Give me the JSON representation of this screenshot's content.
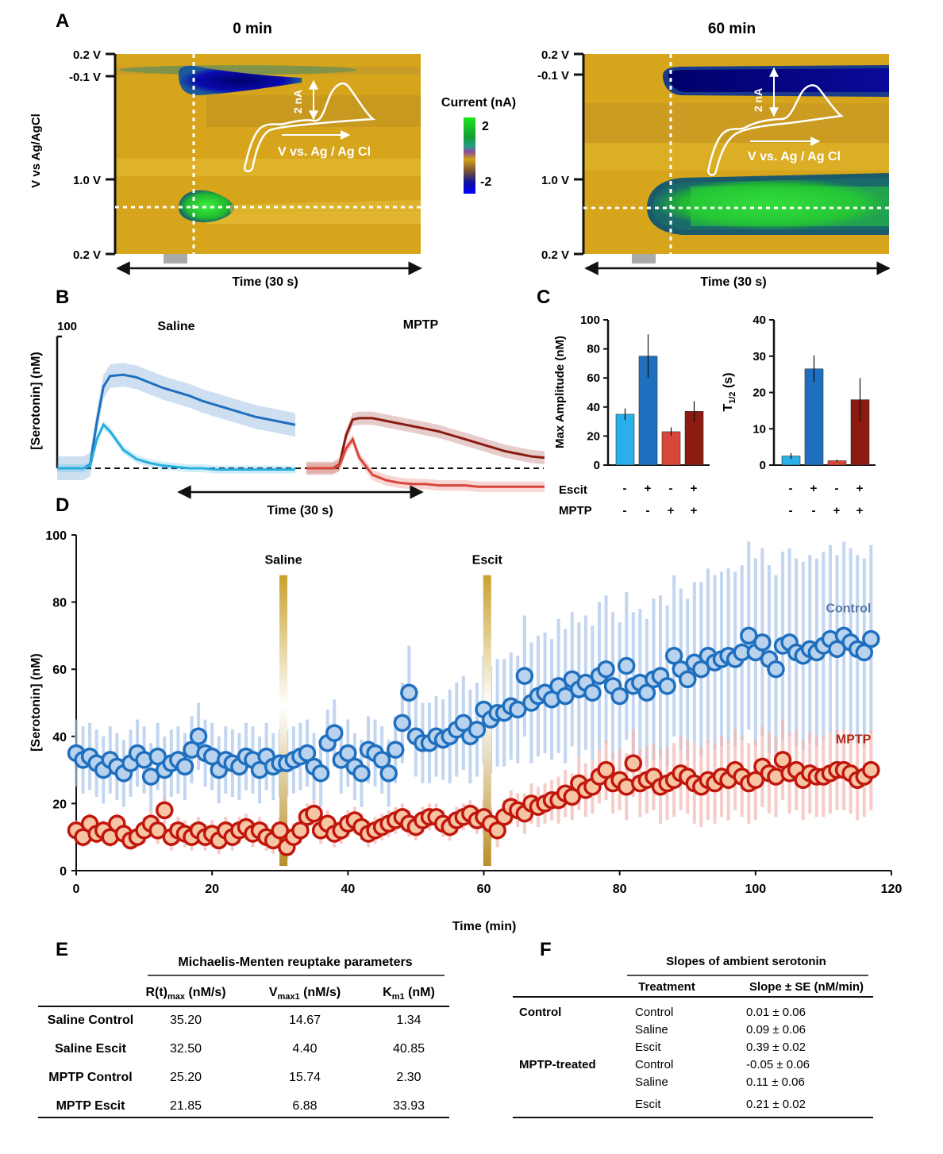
{
  "panels": {
    "A": "A",
    "B": "B",
    "C": "C",
    "D": "D",
    "E": "E",
    "F": "F"
  },
  "panelA": {
    "left_title": "0 min",
    "right_title": "60 min",
    "ylabel": "V vs Ag/AgCl",
    "yticks_left": [
      "0.2 V",
      "-0.1 V",
      "1.0 V",
      "0.2 V"
    ],
    "yticks_right": [
      "0.2 V",
      "-0.1 V",
      "1.0 V",
      "0.2 V"
    ],
    "xlabel": "Time (30 s)",
    "inset_scale": "2 nA",
    "inset_axis": "V vs. Ag / Ag Cl",
    "colorbar_title": "Current (nA)",
    "colorbar_max": "2",
    "colorbar_min": "-2",
    "colors": {
      "background": "#d4a21a",
      "positive": "#22c832",
      "negative": "#0a0aa0"
    }
  },
  "chart_data": [
    {
      "id": "B",
      "type": "line",
      "ylabel": "[Serotonin] (nM)",
      "ytick_top": "100",
      "xlabel": "Time (30 s)",
      "groups": [
        {
          "title": "Saline",
          "series": [
            {
              "color": "#1f6fbf",
              "x": [
                0,
                2,
                4,
                5,
                6,
                7,
                8,
                10,
                12,
                14,
                16,
                18,
                20,
                22,
                24,
                26,
                28,
                30,
                32,
                34,
                36
              ],
              "y": [
                0,
                0,
                0,
                3,
                35,
                62,
                70,
                71,
                69,
                65,
                61,
                58,
                55,
                51,
                48,
                45,
                42,
                39,
                37,
                35,
                33
              ],
              "band": 9
            },
            {
              "color": "#27aee0",
              "x": [
                0,
                2,
                4,
                5,
                6,
                7,
                8,
                10,
                12,
                14,
                16,
                18,
                20,
                22,
                24,
                26,
                28,
                30,
                32,
                34,
                36
              ],
              "y": [
                0,
                0,
                0,
                2,
                22,
                33,
                28,
                14,
                7,
                4,
                2,
                1,
                0,
                0,
                -1,
                -1,
                -1,
                -1,
                -1,
                -1,
                -1
              ],
              "band": 3
            }
          ]
        },
        {
          "title": "MPTP",
          "series": [
            {
              "color": "#8b1a10",
              "x": [
                0,
                2,
                4,
                5,
                6,
                7,
                8,
                10,
                12,
                14,
                16,
                18,
                20,
                22,
                24,
                26,
                28,
                30,
                32,
                34,
                36
              ],
              "y": [
                0,
                0,
                0,
                3,
                25,
                37,
                38,
                38,
                36,
                34,
                32,
                30,
                28,
                25,
                22,
                19,
                16,
                13,
                11,
                9,
                8
              ],
              "band": 5
            },
            {
              "color": "#d9463a",
              "x": [
                0,
                2,
                4,
                5,
                6,
                7,
                8,
                10,
                12,
                14,
                16,
                18,
                20,
                22,
                24,
                26,
                28,
                30,
                32,
                34,
                36
              ],
              "y": [
                0,
                0,
                0,
                2,
                15,
                22,
                8,
                -5,
                -9,
                -11,
                -12,
                -12,
                -13,
                -13,
                -13,
                -14,
                -14,
                -14,
                -14,
                -14,
                -14
              ],
              "band": 4
            }
          ]
        }
      ]
    },
    {
      "id": "C1",
      "type": "bar",
      "ylabel": "Max Amplitude (nM)",
      "ylim": [
        0,
        100
      ],
      "yticks": [
        0,
        20,
        40,
        60,
        80,
        100
      ],
      "values": [
        35,
        75,
        23,
        37
      ],
      "errors": [
        4,
        15,
        3,
        7
      ],
      "colors": [
        "#29b0e8",
        "#1f6fbf",
        "#d9463a",
        "#8b1a10"
      ]
    },
    {
      "id": "C2",
      "type": "bar",
      "ylabel": "T",
      "ylabel_sub": "1/2",
      "ylabel_tail": " (s)",
      "ylim": [
        0,
        40
      ],
      "yticks": [
        0,
        10,
        20,
        30,
        40
      ],
      "values": [
        2.5,
        26.5,
        1.2,
        18
      ],
      "errors": [
        0.8,
        3.7,
        0.3,
        6
      ],
      "colors": [
        "#29b0e8",
        "#1f6fbf",
        "#d9463a",
        "#8b1a10"
      ]
    },
    {
      "id": "D",
      "type": "scatter",
      "xlabel": "Time (min)",
      "ylabel": "[Serotonin] (nM)",
      "xlim": [
        0,
        120
      ],
      "ylim": [
        0,
        100
      ],
      "xticks": [
        0,
        20,
        40,
        60,
        80,
        100,
        120
      ],
      "yticks": [
        0,
        20,
        40,
        60,
        80,
        100
      ],
      "events": [
        {
          "label": "Saline",
          "x": 30.5
        },
        {
          "label": "Escit",
          "x": 60.5
        }
      ],
      "series": [
        {
          "name": "Control",
          "color": "#1f6fbf",
          "fill": "#b9d2ee",
          "x": [
            0,
            1,
            2,
            3,
            4,
            5,
            6,
            7,
            8,
            9,
            10,
            11,
            12,
            13,
            14,
            15,
            16,
            17,
            18,
            19,
            20,
            21,
            22,
            23,
            24,
            25,
            26,
            27,
            28,
            29,
            30,
            31,
            32,
            33,
            34,
            35,
            36,
            37,
            38,
            39,
            40,
            41,
            42,
            43,
            44,
            45,
            46,
            47,
            48,
            49,
            50,
            51,
            52,
            53,
            54,
            55,
            56,
            57,
            58,
            59,
            60,
            61,
            62,
            63,
            64,
            65,
            66,
            67,
            68,
            69,
            70,
            71,
            72,
            73,
            74,
            75,
            76,
            77,
            78,
            79,
            80,
            81,
            82,
            83,
            84,
            85,
            86,
            87,
            88,
            89,
            90,
            91,
            92,
            93,
            94,
            95,
            96,
            97,
            98,
            99,
            100,
            101,
            102,
            103,
            104,
            105,
            106,
            107,
            108,
            109,
            110,
            111,
            112,
            113,
            114,
            115,
            116,
            117
          ],
          "y": [
            35,
            33,
            34,
            32,
            30,
            33,
            31,
            29,
            32,
            35,
            33,
            28,
            34,
            30,
            32,
            33,
            31,
            36,
            40,
            35,
            34,
            30,
            33,
            32,
            31,
            34,
            33,
            30,
            34,
            31,
            32,
            32,
            33,
            34,
            35,
            31,
            29,
            38,
            41,
            33,
            35,
            31,
            29,
            36,
            35,
            33,
            29,
            36,
            44,
            53,
            40,
            38,
            38,
            40,
            39,
            40,
            42,
            44,
            40,
            42,
            48,
            45,
            47,
            47,
            49,
            48,
            58,
            50,
            52,
            53,
            51,
            55,
            52,
            57,
            54,
            56,
            53,
            58,
            60,
            55,
            52,
            61,
            55,
            56,
            53,
            57,
            58,
            55,
            64,
            60,
            57,
            62,
            60,
            64,
            62,
            63,
            64,
            63,
            65,
            70,
            65,
            68,
            63,
            60,
            67,
            68,
            65,
            64,
            66,
            65,
            67,
            69,
            66,
            70,
            68,
            66,
            65,
            69
          ],
          "err": [
            10,
            10,
            10,
            10,
            10,
            10,
            10,
            10,
            10,
            10,
            10,
            10,
            10,
            10,
            10,
            10,
            10,
            10,
            10,
            10,
            10,
            10,
            10,
            10,
            10,
            10,
            10,
            10,
            10,
            10,
            10,
            10,
            10,
            10,
            10,
            10,
            10,
            10,
            10,
            10,
            10,
            10,
            10,
            10,
            10,
            10,
            10,
            10,
            12,
            14,
            12,
            12,
            12,
            12,
            12,
            14,
            14,
            14,
            14,
            14,
            16,
            16,
            16,
            16,
            16,
            16,
            18,
            18,
            18,
            18,
            18,
            20,
            20,
            20,
            20,
            20,
            20,
            22,
            22,
            22,
            22,
            22,
            22,
            22,
            22,
            24,
            24,
            24,
            24,
            24,
            24,
            24,
            26,
            26,
            26,
            26,
            26,
            26,
            26,
            28,
            28,
            28,
            28,
            28,
            28,
            28,
            28,
            28,
            28,
            28,
            28,
            28,
            28,
            28,
            28,
            28,
            28,
            28
          ]
        },
        {
          "name": "MPTP",
          "color": "#c0160c",
          "fill": "#f7c4a4",
          "x": [
            0,
            1,
            2,
            3,
            4,
            5,
            6,
            7,
            8,
            9,
            10,
            11,
            12,
            13,
            14,
            15,
            16,
            17,
            18,
            19,
            20,
            21,
            22,
            23,
            24,
            25,
            26,
            27,
            28,
            29,
            30,
            31,
            32,
            33,
            34,
            35,
            36,
            37,
            38,
            39,
            40,
            41,
            42,
            43,
            44,
            45,
            46,
            47,
            48,
            49,
            50,
            51,
            52,
            53,
            54,
            55,
            56,
            57,
            58,
            59,
            60,
            61,
            62,
            63,
            64,
            65,
            66,
            67,
            68,
            69,
            70,
            71,
            72,
            73,
            74,
            75,
            76,
            77,
            78,
            79,
            80,
            81,
            82,
            83,
            84,
            85,
            86,
            87,
            88,
            89,
            90,
            91,
            92,
            93,
            94,
            95,
            96,
            97,
            98,
            99,
            100,
            101,
            102,
            103,
            104,
            105,
            106,
            107,
            108,
            109,
            110,
            111,
            112,
            113,
            114,
            115,
            116,
            117
          ],
          "y": [
            12,
            10,
            14,
            11,
            12,
            10,
            14,
            11,
            9,
            10,
            12,
            14,
            12,
            18,
            10,
            12,
            11,
            10,
            12,
            10,
            11,
            9,
            12,
            10,
            12,
            13,
            11,
            12,
            10,
            9,
            12,
            7,
            10,
            12,
            16,
            17,
            12,
            14,
            11,
            12,
            14,
            15,
            13,
            11,
            12,
            13,
            14,
            15,
            16,
            14,
            13,
            15,
            16,
            16,
            14,
            13,
            15,
            16,
            17,
            15,
            16,
            14,
            12,
            16,
            19,
            18,
            17,
            20,
            19,
            20,
            21,
            21,
            23,
            22,
            26,
            24,
            25,
            28,
            30,
            26,
            27,
            25,
            32,
            26,
            27,
            28,
            25,
            26,
            27,
            29,
            28,
            26,
            25,
            27,
            26,
            28,
            27,
            30,
            28,
            26,
            27,
            31,
            29,
            28,
            33,
            29,
            30,
            27,
            29,
            28,
            28,
            29,
            30,
            30,
            29,
            27,
            28,
            30
          ],
          "err": [
            3,
            3,
            3,
            3,
            3,
            3,
            3,
            3,
            3,
            3,
            4,
            4,
            4,
            4,
            4,
            4,
            4,
            4,
            4,
            4,
            4,
            4,
            4,
            4,
            4,
            4,
            4,
            4,
            4,
            4,
            4,
            4,
            4,
            4,
            4,
            4,
            4,
            4,
            4,
            4,
            4,
            4,
            4,
            4,
            4,
            4,
            4,
            4,
            4,
            4,
            4,
            4,
            4,
            4,
            4,
            4,
            4,
            4,
            4,
            4,
            5,
            5,
            5,
            5,
            5,
            5,
            6,
            6,
            6,
            6,
            6,
            7,
            7,
            7,
            8,
            8,
            8,
            8,
            9,
            9,
            9,
            10,
            10,
            10,
            10,
            10,
            11,
            11,
            11,
            11,
            11,
            12,
            12,
            12,
            12,
            12,
            12,
            12,
            12,
            12,
            12,
            12,
            12,
            12,
            12,
            12,
            12,
            12,
            12,
            12,
            12,
            12,
            12,
            12,
            12,
            12,
            12,
            12
          ]
        }
      ]
    }
  ],
  "panelC": {
    "escit_label": "Escit",
    "mptp_label": "MPTP",
    "escit": [
      "-",
      "+",
      "-",
      "+"
    ],
    "mptp": [
      "-",
      "-",
      "+",
      "+"
    ]
  },
  "tableE": {
    "title": "Michaelis-Menten reuptake parameters",
    "col1": "R(t)",
    "col1_sub": "max",
    "col1_tail": " (nM/s)",
    "col2": "V",
    "col2_sub": "max1",
    "col2_tail": " (nM/s)",
    "col3": "K",
    "col3_sub": "m1",
    "col3_tail": " (nM)",
    "rows": [
      {
        "name": "Saline Control",
        "a": "35.20",
        "b": "14.67",
        "c": "1.34"
      },
      {
        "name": "Saline Escit",
        "a": "32.50",
        "b": "4.40",
        "c": "40.85"
      },
      {
        "name": "MPTP Control",
        "a": "25.20",
        "b": "15.74",
        "c": "2.30"
      },
      {
        "name": "MPTP Escit",
        "a": "21.85",
        "b": "6.88",
        "c": "33.93"
      }
    ]
  },
  "tableF": {
    "title": "Slopes of ambient serotonin",
    "col1": "Treatment",
    "col2": "Slope ± SE (nM/min)",
    "group1": "Control",
    "group2": "MPTP-treated",
    "rows": [
      {
        "t": "Control",
        "s": "0.01 ± 0.06"
      },
      {
        "t": "Saline",
        "s": "0.09 ± 0.06"
      },
      {
        "t": "Escit",
        "s": "0.39 ± 0.02"
      },
      {
        "t": "Control",
        "s": "-0.05 ± 0.06"
      },
      {
        "t": "Saline",
        "s": "0.11 ± 0.06"
      },
      {
        "t": "Escit",
        "s": "0.21 ± 0.02"
      }
    ]
  }
}
